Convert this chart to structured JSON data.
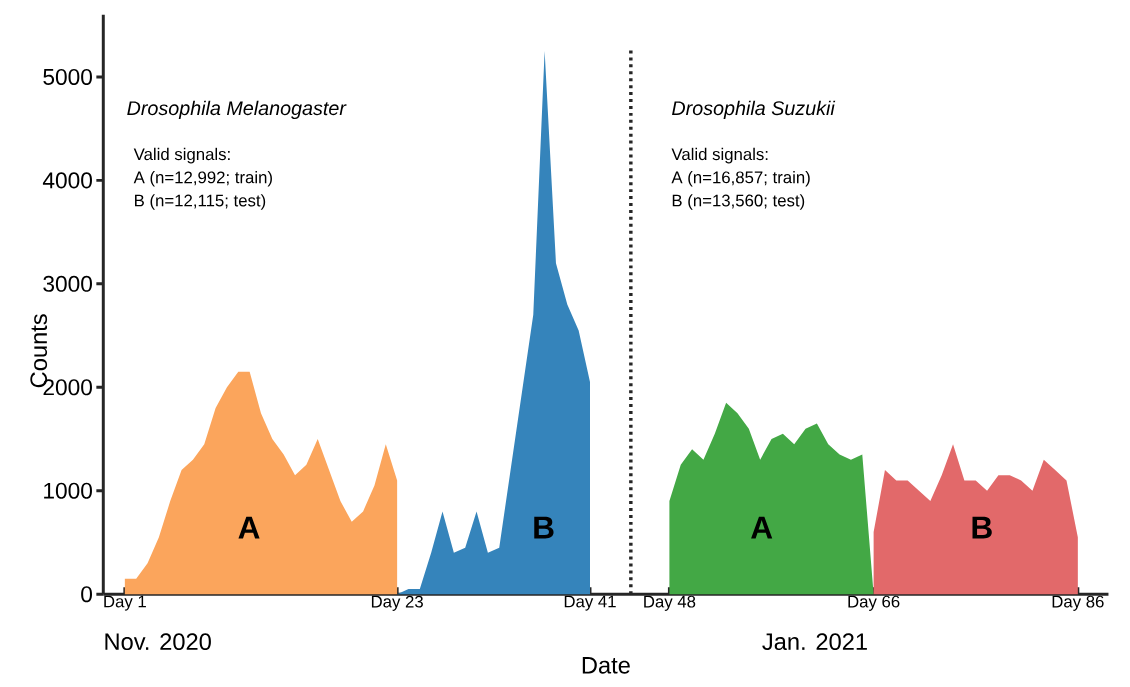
{
  "chart_data": {
    "type": "area",
    "xlabel": "Date",
    "ylabel": "Counts",
    "categories": [
      "Day 1",
      null,
      null,
      null,
      null,
      null,
      null,
      null,
      null,
      null,
      null,
      null,
      null,
      null,
      null,
      null,
      null,
      null,
      null,
      null,
      null,
      null,
      null,
      null,
      "Day 23",
      null,
      null,
      null,
      null,
      null,
      null,
      null,
      null,
      null,
      null,
      null,
      null,
      null,
      null,
      null,
      null,
      "Day 41",
      null,
      null,
      null,
      null,
      null,
      null,
      "Day 48",
      null,
      null,
      null,
      null,
      null,
      null,
      null,
      null,
      null,
      null,
      null,
      null,
      null,
      null,
      null,
      null,
      null,
      "Day 66",
      null,
      null,
      null,
      null,
      null,
      null,
      null,
      null,
      null,
      null,
      null,
      null,
      null,
      null,
      null,
      null,
      null,
      "Day 86"
    ],
    "ylim": [
      0,
      5600
    ],
    "yticks": [
      0,
      1000,
      2000,
      3000,
      4000,
      5000
    ],
    "series": [
      {
        "color": "#fba55c",
        "values": [
          150,
          150,
          300,
          550,
          900,
          1200,
          1300,
          1450,
          1800,
          2000,
          2150,
          2150,
          1750,
          1500,
          1350,
          1150,
          1250,
          1500,
          1200,
          900,
          700,
          800,
          1050,
          1450,
          1100,
          null,
          null,
          null,
          null,
          null,
          null,
          null,
          null,
          null,
          null,
          null,
          null,
          null,
          null,
          null,
          null,
          null,
          null,
          null,
          null,
          null,
          null,
          null,
          null,
          null,
          null,
          null,
          null,
          null,
          null,
          null,
          null,
          null,
          null,
          null,
          null,
          null,
          null,
          null,
          null,
          null,
          null,
          null,
          null,
          null,
          null,
          null,
          null,
          null,
          null,
          null,
          null,
          null,
          null,
          null,
          null,
          null,
          null,
          null,
          null
        ]
      },
      {
        "color": "#3584bb",
        "values": [
          null,
          null,
          null,
          null,
          null,
          null,
          null,
          null,
          null,
          null,
          null,
          null,
          null,
          null,
          null,
          null,
          null,
          null,
          null,
          null,
          null,
          null,
          null,
          null,
          0,
          50,
          50,
          400,
          800,
          400,
          450,
          800,
          400,
          450,
          1200,
          1950,
          2700,
          5250,
          3200,
          2800,
          2550,
          2050,
          null,
          null,
          null,
          null,
          null,
          null,
          null,
          null,
          null,
          null,
          null,
          null,
          null,
          null,
          null,
          null,
          null,
          null,
          null,
          null,
          null,
          null,
          null,
          null,
          null,
          null,
          null,
          null,
          null,
          null,
          null,
          null,
          null,
          null,
          null,
          null,
          null,
          null,
          null,
          null,
          null,
          null,
          null
        ]
      },
      {
        "color": "#43a845",
        "values": [
          null,
          null,
          null,
          null,
          null,
          null,
          null,
          null,
          null,
          null,
          null,
          null,
          null,
          null,
          null,
          null,
          null,
          null,
          null,
          null,
          null,
          null,
          null,
          null,
          null,
          null,
          null,
          null,
          null,
          null,
          null,
          null,
          null,
          null,
          null,
          null,
          null,
          null,
          null,
          null,
          null,
          null,
          null,
          null,
          null,
          null,
          null,
          null,
          900,
          1250,
          1400,
          1300,
          1550,
          1850,
          1750,
          1600,
          1300,
          1500,
          1550,
          1450,
          1600,
          1650,
          1450,
          1350,
          1300,
          1350,
          0,
          null,
          null,
          null,
          null,
          null,
          null,
          null,
          null,
          null,
          null,
          null,
          null,
          null,
          null,
          null,
          null,
          null,
          null
        ]
      },
      {
        "color": "#e2696a",
        "values": [
          null,
          null,
          null,
          null,
          null,
          null,
          null,
          null,
          null,
          null,
          null,
          null,
          null,
          null,
          null,
          null,
          null,
          null,
          null,
          null,
          null,
          null,
          null,
          null,
          null,
          null,
          null,
          null,
          null,
          null,
          null,
          null,
          null,
          null,
          null,
          null,
          null,
          null,
          null,
          null,
          null,
          null,
          null,
          null,
          null,
          null,
          null,
          null,
          null,
          null,
          null,
          null,
          null,
          null,
          null,
          null,
          null,
          null,
          null,
          null,
          null,
          null,
          null,
          null,
          null,
          null,
          600,
          1200,
          1100,
          1100,
          1000,
          900,
          1150,
          1450,
          1100,
          1100,
          1000,
          1150,
          1150,
          1100,
          1000,
          1300,
          1200,
          1100,
          550
        ]
      }
    ],
    "annotations": [
      "Drosophila Melanogaster",
      "Valid signals:",
      "A (n=12,992; train)",
      "B (n=12,115; test)",
      "Drosophila Suzukii",
      "Valid signals:",
      "A (n=16,857; train)",
      "B (n=13,560; test)",
      "Nov. 2020",
      "Jan. 2021",
      "A",
      "B",
      "A",
      "B"
    ]
  }
}
